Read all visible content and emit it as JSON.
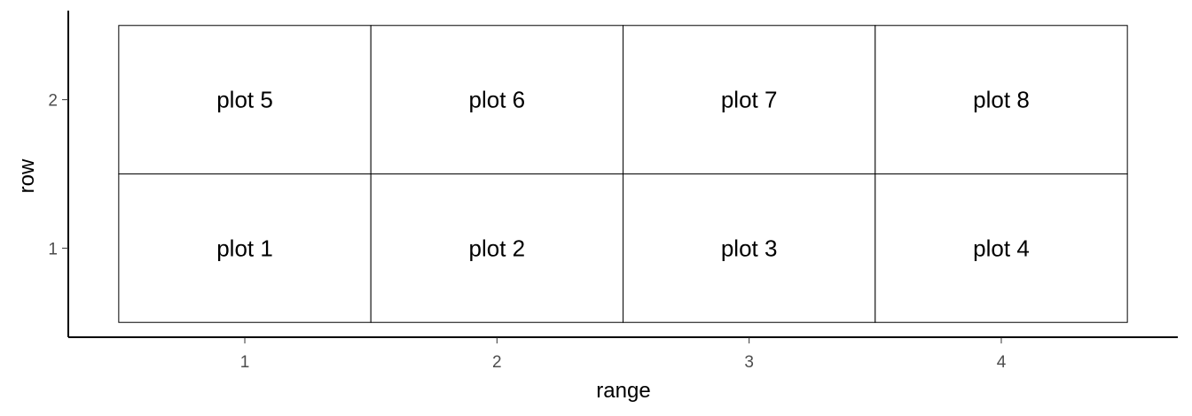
{
  "chart_data": {
    "type": "table",
    "xlabel": "range",
    "ylabel": "row",
    "xlim": [
      0.3,
      4.7
    ],
    "ylim": [
      0.4,
      2.6
    ],
    "x_ticks": [
      1,
      2,
      3,
      4
    ],
    "y_ticks": [
      1,
      2
    ],
    "grid": false,
    "cell_size": {
      "width": 1,
      "height": 1
    },
    "cells": [
      {
        "x": 1,
        "y": 1,
        "label": "plot 1"
      },
      {
        "x": 2,
        "y": 1,
        "label": "plot 2"
      },
      {
        "x": 3,
        "y": 1,
        "label": "plot 3"
      },
      {
        "x": 4,
        "y": 1,
        "label": "plot 4"
      },
      {
        "x": 1,
        "y": 2,
        "label": "plot 5"
      },
      {
        "x": 2,
        "y": 2,
        "label": "plot 6"
      },
      {
        "x": 3,
        "y": 2,
        "label": "plot 7"
      },
      {
        "x": 4,
        "y": 2,
        "label": "plot 8"
      }
    ],
    "colors": {
      "cell_fill": "#ffffff",
      "cell_border": "#000000",
      "axis_line": "#000000",
      "tick_mark": "#333333",
      "tick_text": "#4d4d4d",
      "text": "#000000",
      "background": "#ffffff"
    }
  }
}
